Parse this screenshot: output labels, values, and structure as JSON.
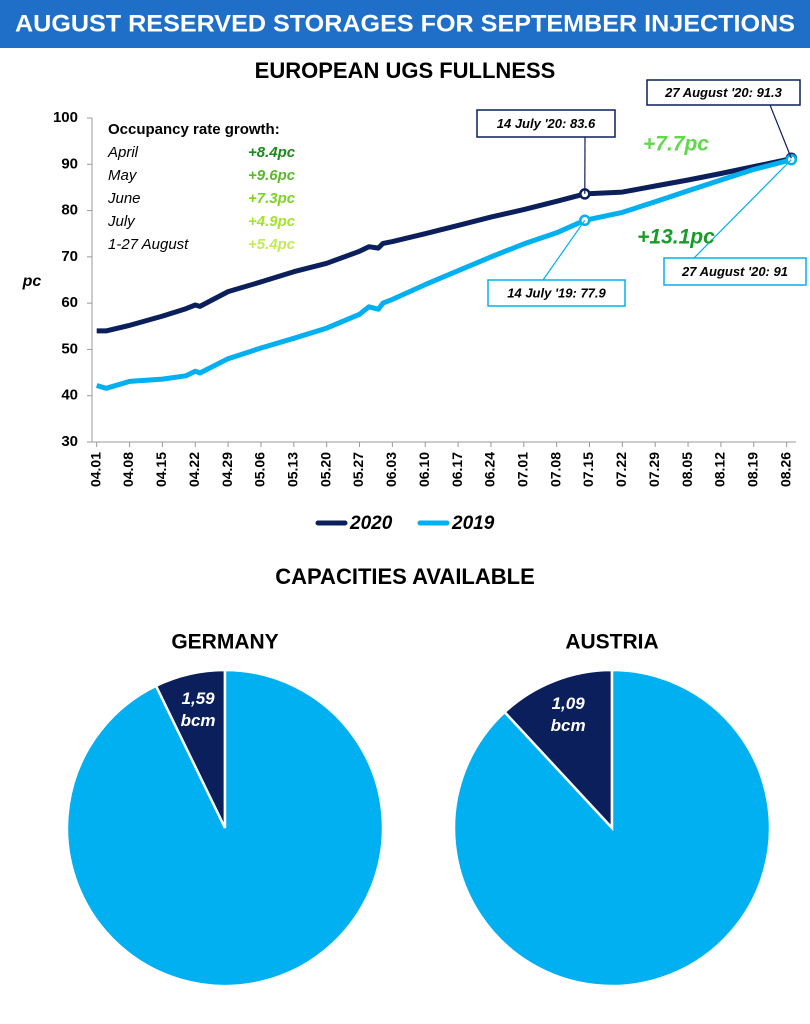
{
  "header": {
    "title": "AUGUST RESERVED STORAGES FOR SEPTEMBER INJECTIONS"
  },
  "pies_title": "CAPACITIES AVAILABLE",
  "chart_data": [
    {
      "type": "line",
      "title": "EUROPEAN UGS FULLNESS",
      "y_label": "pc",
      "x": [
        "04.01",
        "04.03",
        "04.08",
        "04.15",
        "04.20",
        "04.22",
        "04.23",
        "04.29",
        "05.06",
        "05.13",
        "05.20",
        "05.27",
        "05.29",
        "05.31",
        "06.01",
        "06.03",
        "06.10",
        "06.17",
        "06.24",
        "07.01",
        "07.08",
        "07.14",
        "07.22",
        "07.29",
        "08.05",
        "08.12",
        "08.19",
        "08.26",
        "08.27"
      ],
      "series": [
        {
          "name": "2020",
          "color": "#0b1f5c",
          "values": [
            54.0,
            54.0,
            55.2,
            57.2,
            58.8,
            59.6,
            59.3,
            62.5,
            64.6,
            66.8,
            68.6,
            71.2,
            72.2,
            71.9,
            72.9,
            73.3,
            75.0,
            76.8,
            78.6,
            80.2,
            82.0,
            83.6,
            84.0,
            85.3,
            86.6,
            88.0,
            89.5,
            91.0,
            91.3
          ]
        },
        {
          "name": "2019",
          "color": "#00b0f0",
          "values": [
            42.2,
            41.6,
            43.1,
            43.6,
            44.3,
            45.3,
            44.9,
            48.0,
            50.3,
            52.4,
            54.6,
            57.6,
            59.2,
            58.7,
            60.0,
            60.8,
            64.0,
            67.0,
            70.0,
            72.8,
            75.2,
            77.9,
            79.6,
            81.9,
            84.3,
            86.6,
            88.9,
            90.7,
            91.0
          ]
        }
      ],
      "xlim": [
        "03.31",
        "08.28"
      ],
      "xticks": [
        "04.01",
        "04.08",
        "04.15",
        "04.22",
        "04.29",
        "05.06",
        "05.13",
        "05.20",
        "05.27",
        "06.03",
        "06.10",
        "06.17",
        "06.24",
        "07.01",
        "07.08",
        "07.15",
        "07.22",
        "07.29",
        "08.05",
        "08.12",
        "08.19",
        "08.26"
      ],
      "ylim": [
        30,
        100
      ],
      "yticks": [
        30,
        40,
        50,
        60,
        70,
        80,
        90,
        100
      ],
      "grid": false,
      "annotations": [
        {
          "text": "14 July '20: 83.6",
          "color": "#0b1f5c"
        },
        {
          "text": "27 August '20: 91.3",
          "color": "#0b1f5c"
        },
        {
          "text": "14 July '19: 77.9",
          "color": "#00b0f0"
        },
        {
          "text": "27 August '20: 91",
          "color": "#00b0f0"
        }
      ],
      "callouts": [
        {
          "text": "+7.7pc",
          "color": "#5fd94a"
        },
        {
          "text": "+13.1pc",
          "color": "#1a9a2a"
        }
      ],
      "growth_table": {
        "title": "Occupancy rate growth:",
        "rows": [
          {
            "label": "April",
            "value": "+8.4pc",
            "color": "#1a8a1a"
          },
          {
            "label": "May",
            "value": "+9.6pc",
            "color": "#5cb82e"
          },
          {
            "label": "June",
            "value": "+7.3pc",
            "color": "#7ed321"
          },
          {
            "label": "July",
            "value": "+4.9pc",
            "color": "#a6e22e"
          },
          {
            "label": "1-27 August",
            "value": "+5.4pc",
            "color": "#c2ea5a"
          }
        ]
      }
    },
    {
      "type": "pie",
      "title": "GERMANY",
      "values": [
        1.59,
        20.5
      ],
      "value_labels": [
        "1,59 bcm",
        null
      ],
      "colors": [
        "#0b1f5c",
        "#00b0f0"
      ]
    },
    {
      "type": "pie",
      "title": "AUSTRIA",
      "values": [
        1.09,
        8.07
      ],
      "value_labels": [
        "1,09 bcm",
        null
      ],
      "colors": [
        "#0b1f5c",
        "#00b0f0"
      ]
    }
  ]
}
